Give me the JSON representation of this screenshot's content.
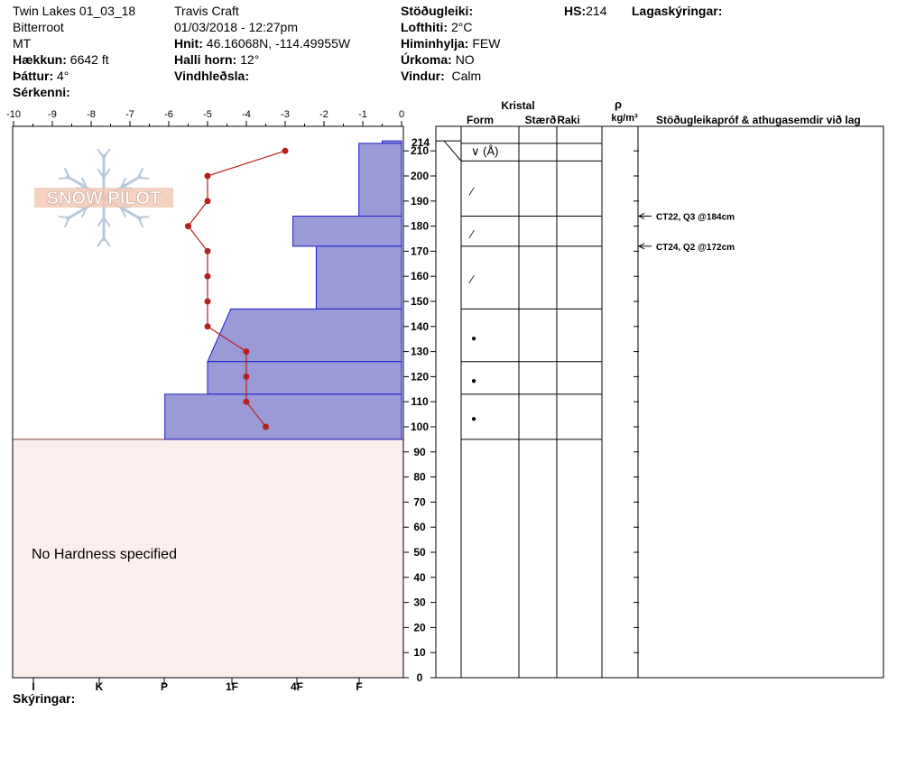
{
  "header": {
    "site": "Twin Lakes 01_03_18",
    "range": "Bitterroot",
    "state": "MT",
    "elevation_label": "Hækkun:",
    "elevation": "6642 ft",
    "aspect_label": "Þáttur:",
    "aspect": "4°",
    "features_label": "Sérkenni:",
    "observer": "Travis  Craft",
    "datetime": "01/03/2018 - 12:27pm",
    "coords_label": "Hnit:",
    "coords": "46.16068N, -114.49955W",
    "slope_label": "Halli horn:",
    "slope": "12°",
    "wind_loading_label": "Vindhleðsla:",
    "stability_label": "Stöðugleiki:",
    "air_temp_label": "Lofthiti:",
    "air_temp": "2°C",
    "sky_label": "Himinhylja:",
    "sky": "FEW",
    "precip_label": "Úrkoma:",
    "precip": "NO",
    "wind_label": "Vindur:",
    "wind": "Calm",
    "hs_label": "HS:",
    "hs": "214",
    "layer_notes_label": "Lagaskýringar:"
  },
  "footer": {
    "notes_label": "Skýringar:"
  },
  "logo_text": "SNOW PILOT",
  "colors": {
    "hardness_fill": "#9a9ad6",
    "hardness_stroke": "#1a1acc",
    "temp_line": "#b82020",
    "no_hardness_bg": "#fdeeee",
    "logo": "#b8c8d8"
  },
  "chart_data": {
    "type": "snow-profile",
    "depth_range": [
      0,
      214
    ],
    "temp_axis": {
      "range": [
        -10,
        0
      ],
      "ticks": [
        "-10",
        "-9",
        "-8",
        "-7",
        "-6",
        "-5",
        "-4",
        "-3",
        "-2",
        "-1",
        "0"
      ]
    },
    "hardness_axis": {
      "ticks": [
        "I",
        "K",
        "P",
        "1F",
        "4F",
        "F"
      ]
    },
    "depth_ticks": [
      0,
      10,
      20,
      30,
      40,
      50,
      60,
      70,
      80,
      90,
      100,
      110,
      120,
      130,
      140,
      150,
      160,
      170,
      180,
      190,
      200,
      210
    ],
    "depth_top_label": "214",
    "temperature_profile": [
      {
        "depth": 210,
        "temp": -3.0
      },
      {
        "depth": 200,
        "temp": -5.0
      },
      {
        "depth": 190,
        "temp": -5.0
      },
      {
        "depth": 180,
        "temp": -5.5
      },
      {
        "depth": 170,
        "temp": -5.0
      },
      {
        "depth": 160,
        "temp": -5.0
      },
      {
        "depth": 150,
        "temp": -5.0
      },
      {
        "depth": 140,
        "temp": -5.0
      },
      {
        "depth": 130,
        "temp": -4.0
      },
      {
        "depth": 120,
        "temp": -4.0
      },
      {
        "depth": 110,
        "temp": -4.0
      },
      {
        "depth": 100,
        "temp": -3.5
      }
    ],
    "hardness_layers": [
      {
        "top": 214,
        "bottom": 213,
        "hardness_top": -0.5,
        "hardness_bottom": -0.5
      },
      {
        "top": 213,
        "bottom": 184,
        "hardness_top": -1.1,
        "hardness_bottom": -1.1
      },
      {
        "top": 184,
        "bottom": 172,
        "hardness_top": -2.8,
        "hardness_bottom": -2.8
      },
      {
        "top": 172,
        "bottom": 147,
        "hardness_top": -2.2,
        "hardness_bottom": -2.2
      },
      {
        "top": 147,
        "bottom": 126,
        "hardness_top": -4.4,
        "hardness_bottom": -5.0
      },
      {
        "top": 126,
        "bottom": 113,
        "hardness_top": -5.0,
        "hardness_bottom": -5.0
      },
      {
        "top": 113,
        "bottom": 95,
        "hardness_top": -6.1,
        "hardness_bottom": -6.1
      }
    ],
    "no_hardness_label": "No Hardness specified",
    "layer_boundaries": [
      214,
      213,
      206,
      184,
      172,
      147,
      126,
      113,
      95
    ],
    "grain_symbols": [
      {
        "depth": 210,
        "symbol": "∨ (Å)"
      },
      {
        "depth": 194,
        "symbol": "⁄"
      },
      {
        "depth": 177,
        "symbol": "⁄"
      },
      {
        "depth": 159,
        "symbol": "⁄"
      },
      {
        "depth": 136,
        "symbol": "●"
      },
      {
        "depth": 119,
        "symbol": "●"
      },
      {
        "depth": 104,
        "symbol": "●"
      }
    ],
    "stability_tests": [
      {
        "depth": 184,
        "label": "CT22, Q3 @184cm"
      },
      {
        "depth": 172,
        "label": "CT24, Q2 @172cm"
      }
    ],
    "columns": {
      "crystal": "Kristal",
      "form": "Form",
      "size": "Stærð",
      "moisture": "Raki",
      "density_symbol": "ρ",
      "density_unit": "kg/m³",
      "tests": "Stöðugleikapróf & athugasemdir við lag"
    }
  }
}
